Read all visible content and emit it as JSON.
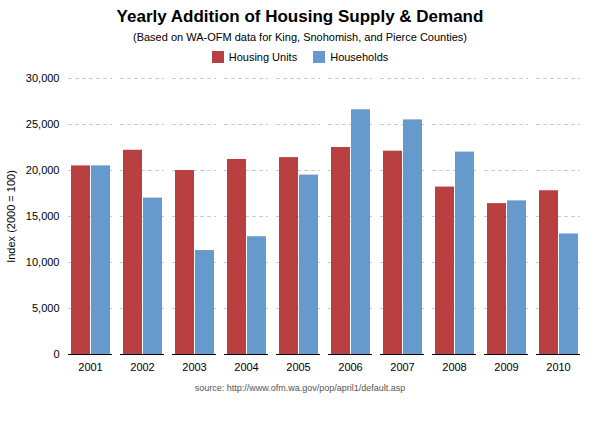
{
  "chart_data": {
    "type": "bar",
    "title": "Yearly Addition of Housing Supply & Demand",
    "subtitle": "(Based on WA-OFM data for King, Snohomish, and Pierce Counties)",
    "source": "source: http://www.ofm.wa.gov/pop/april1/default.asp",
    "ylabel": "Index (2000 = 100)",
    "categories": [
      "2001",
      "2002",
      "2003",
      "2004",
      "2005",
      "2006",
      "2007",
      "2008",
      "2009",
      "2010"
    ],
    "series": [
      {
        "name": "Housing Units",
        "color": "#b94040",
        "values": [
          20500,
          22200,
          20000,
          21200,
          21400,
          22500,
          22100,
          18200,
          16400,
          17800
        ]
      },
      {
        "name": "Households",
        "color": "#6699cc",
        "values": [
          20500,
          17000,
          11300,
          12800,
          19500,
          26600,
          25500,
          22000,
          16700,
          13100
        ]
      }
    ],
    "ylim": [
      0,
      30000
    ],
    "yticks": [
      0,
      {
        "value": 5000,
        "label": "5,000"
      },
      {
        "value": 10000,
        "label": "10,000"
      },
      {
        "value": 15000,
        "label": "15,000"
      },
      {
        "value": 20000,
        "label": "20,000"
      },
      {
        "value": 25000,
        "label": "25,000"
      },
      {
        "value": 30000,
        "label": "30,000"
      }
    ],
    "grid": true,
    "legend": "top"
  }
}
